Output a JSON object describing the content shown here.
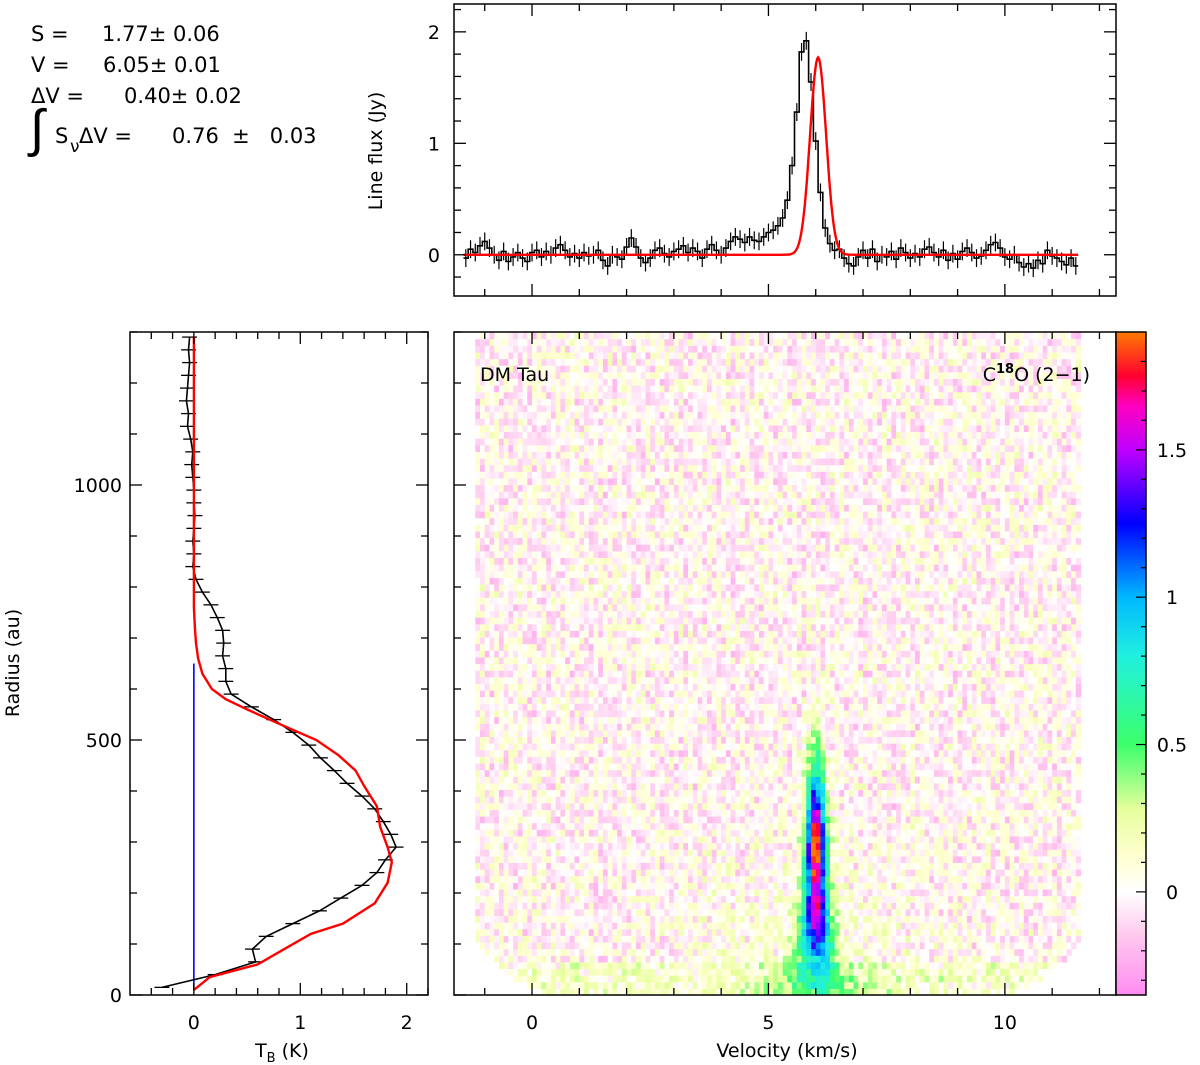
{
  "annotations": {
    "s_line": "S =     1.77± 0.06",
    "v_line": "V =     6.05± 0.01",
    "dv_line": "ΔV =      0.40± 0.02",
    "integral_symbol": "∫",
    "int_s": "S",
    "int_nu": "ν",
    "int_rest": "ΔV =      0.76  ±   0.03"
  },
  "colors": {
    "data": "#000000",
    "model": "#ff0000",
    "vertical_marker": "#0000ff"
  },
  "chart_data": [
    {
      "type": "line",
      "id": "spectrum",
      "ylabel": "Line flux (Jy)",
      "xlim": [
        -1.65,
        12.35
      ],
      "ylim": [
        -0.37,
        2.25
      ],
      "yticks": [
        0,
        1,
        2
      ],
      "ytick_labels": [
        "0",
        "1",
        "2"
      ],
      "series": [
        {
          "role": "data-with-errorbars",
          "x": [
            -1.4,
            -1.3,
            -1.2,
            -1.1,
            -1.0,
            -0.9,
            -0.8,
            -0.7,
            -0.6,
            -0.5,
            -0.4,
            -0.3,
            -0.2,
            -0.1,
            0.0,
            0.1,
            0.2,
            0.3,
            0.4,
            0.5,
            0.6,
            0.7,
            0.8,
            0.9,
            1.0,
            1.1,
            1.2,
            1.3,
            1.4,
            1.5,
            1.6,
            1.7,
            1.8,
            1.9,
            2.0,
            2.1,
            2.2,
            2.3,
            2.4,
            2.5,
            2.6,
            2.7,
            2.8,
            2.9,
            3.0,
            3.1,
            3.2,
            3.3,
            3.4,
            3.5,
            3.6,
            3.7,
            3.8,
            3.9,
            4.0,
            4.1,
            4.2,
            4.3,
            4.4,
            4.5,
            4.6,
            4.7,
            4.8,
            4.9,
            5.0,
            5.1,
            5.2,
            5.3,
            5.4,
            5.5,
            5.6,
            5.7,
            5.8,
            5.9,
            6.0,
            6.1,
            6.2,
            6.3,
            6.4,
            6.5,
            6.6,
            6.7,
            6.8,
            6.9,
            7.0,
            7.1,
            7.2,
            7.3,
            7.4,
            7.5,
            7.6,
            7.7,
            7.8,
            7.9,
            8.0,
            8.1,
            8.2,
            8.3,
            8.4,
            8.5,
            8.6,
            8.7,
            8.8,
            8.9,
            9.0,
            9.1,
            9.2,
            9.3,
            9.4,
            9.5,
            9.6,
            9.7,
            9.8,
            9.9,
            10.0,
            10.1,
            10.2,
            10.3,
            10.4,
            10.5,
            10.6,
            10.7,
            10.8,
            10.9,
            11.0,
            11.1,
            11.2,
            11.3,
            11.4,
            11.5
          ],
          "y": [
            -0.03,
            0.05,
            0.02,
            0.08,
            0.12,
            0.06,
            0.0,
            -0.05,
            0.03,
            -0.06,
            -0.02,
            0.02,
            -0.03,
            -0.06,
            0.02,
            0.04,
            -0.02,
            0.03,
            0.0,
            0.06,
            0.09,
            0.04,
            -0.02,
            0.01,
            -0.03,
            0.02,
            -0.01,
            0.0,
            0.04,
            -0.05,
            -0.1,
            0.0,
            -0.02,
            -0.04,
            0.07,
            0.15,
            0.07,
            -0.03,
            -0.07,
            -0.03,
            0.04,
            0.06,
            0.01,
            -0.02,
            0.03,
            0.05,
            0.08,
            0.02,
            0.06,
            0.03,
            -0.03,
            0.05,
            0.09,
            0.04,
            0.0,
            0.06,
            0.12,
            0.16,
            0.14,
            0.11,
            0.16,
            0.13,
            0.12,
            0.16,
            0.2,
            0.22,
            0.26,
            0.33,
            0.49,
            0.8,
            1.28,
            1.82,
            1.92,
            1.55,
            1.02,
            0.56,
            0.24,
            0.1,
            0.04,
            0.05,
            -0.03,
            -0.08,
            -0.1,
            -0.02,
            0.04,
            -0.03,
            0.05,
            -0.06,
            0.0,
            -0.02,
            0.03,
            -0.04,
            0.06,
            0.02,
            -0.03,
            0.01,
            -0.02,
            0.05,
            0.07,
            0.02,
            -0.02,
            0.04,
            -0.05,
            0.01,
            -0.04,
            0.03,
            0.06,
            0.02,
            -0.03,
            -0.01,
            0.04,
            0.09,
            0.11,
            0.06,
            -0.02,
            -0.04,
            0.0,
            -0.07,
            -0.11,
            -0.08,
            -0.12,
            -0.05,
            -0.08,
            0.04,
            -0.01,
            -0.03,
            -0.06,
            -0.09,
            -0.03,
            -0.1
          ],
          "error": 0.08
        },
        {
          "role": "model",
          "function": "gaussian",
          "peak": 1.77,
          "center": 6.05,
          "fwhm": 0.4
        }
      ]
    },
    {
      "type": "line",
      "id": "radial-profile",
      "xlabel_main": "T",
      "xlabel_sub": "B",
      "xlabel_unit": " (K)",
      "ylabel": "Radius (au)",
      "xlim": [
        -0.6,
        2.2
      ],
      "ylim": [
        0,
        1300
      ],
      "xticks": [
        0,
        1,
        2
      ],
      "xtick_labels": [
        "0",
        "1",
        "2"
      ],
      "yticks": [
        0,
        500,
        1000
      ],
      "ytick_labels": [
        "0",
        "500",
        "1000"
      ],
      "series": [
        {
          "role": "data-with-errorbars",
          "radius": [
            15,
            40,
            65,
            90,
            115,
            140,
            165,
            190,
            215,
            240,
            265,
            290,
            315,
            340,
            365,
            390,
            415,
            440,
            465,
            490,
            515,
            540,
            565,
            590,
            615,
            640,
            665,
            690,
            715,
            740,
            765,
            790,
            815,
            840,
            865,
            890,
            915,
            940,
            965,
            990,
            1015,
            1040,
            1065,
            1090,
            1115,
            1140,
            1165,
            1190,
            1215,
            1240,
            1265,
            1290
          ],
          "tb": [
            -0.3,
            0.2,
            0.58,
            0.55,
            0.68,
            0.93,
            1.18,
            1.38,
            1.58,
            1.72,
            1.8,
            1.9,
            1.85,
            1.78,
            1.7,
            1.58,
            1.44,
            1.32,
            1.19,
            1.08,
            0.93,
            0.75,
            0.54,
            0.35,
            0.3,
            0.3,
            0.27,
            0.28,
            0.27,
            0.22,
            0.16,
            0.08,
            0.02,
            -0.01,
            0.0,
            -0.01,
            0.0,
            0.01,
            0.0,
            0.0,
            -0.01,
            -0.02,
            -0.01,
            -0.03,
            -0.06,
            -0.05,
            -0.07,
            -0.06,
            -0.05,
            -0.04,
            -0.05,
            -0.04
          ],
          "error": 0.07
        },
        {
          "role": "model",
          "radius": [
            10,
            35,
            60,
            90,
            120,
            140,
            180,
            220,
            260,
            290,
            330,
            370,
            410,
            440,
            470,
            500,
            530,
            560,
            580,
            600,
            630,
            660,
            690,
            720,
            760,
            800,
            850,
            900,
            1000,
            1100,
            1200,
            1290
          ],
          "tb": [
            0.0,
            0.15,
            0.6,
            0.85,
            1.1,
            1.4,
            1.7,
            1.82,
            1.86,
            1.82,
            1.75,
            1.72,
            1.6,
            1.52,
            1.36,
            1.15,
            0.82,
            0.5,
            0.3,
            0.17,
            0.08,
            0.04,
            0.02,
            0.01,
            0.0,
            0.0,
            0.0,
            0.0,
            0.0,
            0.0,
            0.0,
            0.0
          ]
        },
        {
          "role": "marker",
          "tb": 0.0,
          "radius_range": [
            10,
            650
          ]
        }
      ]
    },
    {
      "type": "heatmap",
      "id": "position-velocity",
      "title_left": "DM Tau",
      "title_right_prefix": "C",
      "title_right_sup": "18",
      "title_right_suffix": "O (2−1)",
      "xlabel": "Velocity (km/s)",
      "xlim": [
        -1.65,
        12.35
      ],
      "ylim": [
        0,
        1300
      ],
      "xticks": [
        0,
        5,
        10
      ],
      "xtick_labels": [
        "0",
        "5",
        "10"
      ],
      "colorbar": {
        "range": [
          -0.35,
          1.9
        ],
        "ticks": [
          0,
          0.5,
          1,
          1.5
        ],
        "tick_labels": [
          "0",
          "0.5",
          "1",
          "1.5"
        ],
        "stops": [
          {
            "v": -0.35,
            "color": "#ff8cf2"
          },
          {
            "v": -0.15,
            "color": "#ffc8ee"
          },
          {
            "v": 0.0,
            "color": "#ffffff"
          },
          {
            "v": 0.12,
            "color": "#ffffd0"
          },
          {
            "v": 0.28,
            "color": "#e6ff9c"
          },
          {
            "v": 0.5,
            "color": "#3cff6a"
          },
          {
            "v": 0.8,
            "color": "#20f0e0"
          },
          {
            "v": 1.0,
            "color": "#00b8ff"
          },
          {
            "v": 1.25,
            "color": "#0000ff"
          },
          {
            "v": 1.5,
            "color": "#c000ff"
          },
          {
            "v": 1.65,
            "color": "#ff00c0"
          },
          {
            "v": 1.75,
            "color": "#ff0030"
          },
          {
            "v": 1.9,
            "color": "#ff7a00"
          }
        ]
      },
      "emission": {
        "center_velocity": 6.05,
        "peak_radius": 285,
        "peak_value": 1.85,
        "description": "C18O emission concentrated near 6 km/s between 20 and 600 au; low-level noise elsewhere"
      }
    }
  ]
}
